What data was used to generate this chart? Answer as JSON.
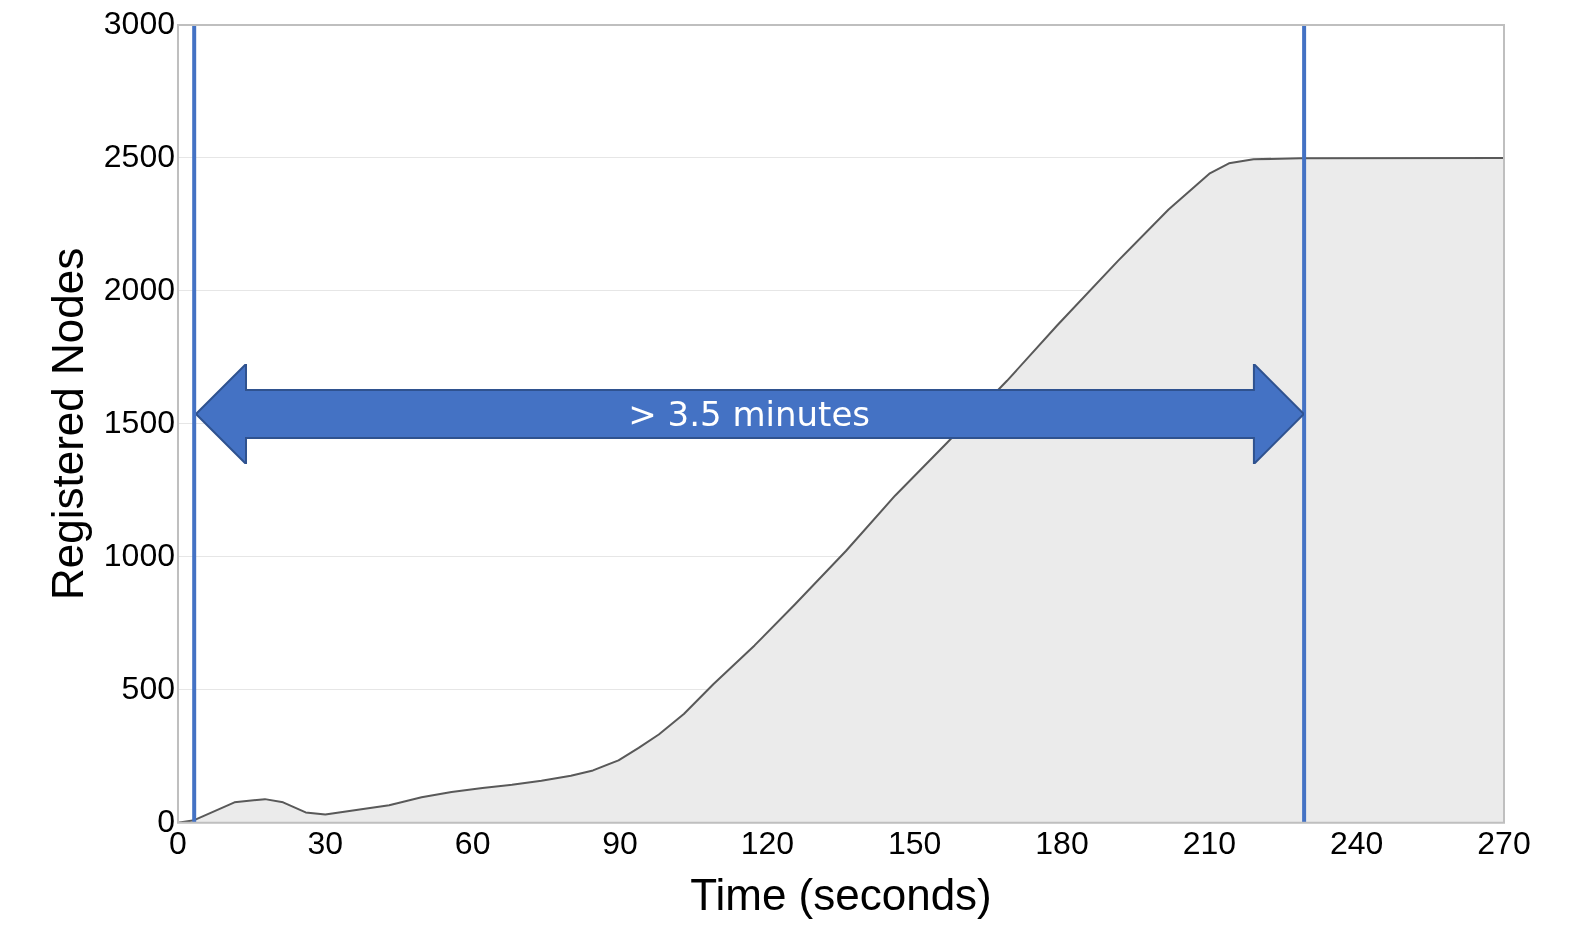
{
  "chart_data": {
    "type": "area",
    "xlabel": "Time (seconds)",
    "ylabel": "Registered Nodes",
    "x": [
      0,
      3.3,
      11.5,
      17.7,
      21.4,
      26,
      30,
      37,
      43,
      49.6,
      55.7,
      62,
      68,
      74,
      80,
      84.5,
      89.7,
      93.8,
      97.9,
      103,
      109,
      117.4,
      125.6,
      136,
      146,
      156.5,
      168.8,
      179,
      191.4,
      201.7,
      210,
      214,
      219,
      228.5,
      270
    ],
    "series": [
      {
        "color": "#595959",
        "values": [
          0,
          10,
          77,
          89,
          77,
          39,
          31,
          50,
          66,
          96,
          116,
          131,
          143,
          158,
          177,
          197,
          235,
          282,
          332,
          409,
          521,
          667,
          821,
          1022,
          1230,
          1427,
          1662,
          1870,
          2113,
          2306,
          2441,
          2480,
          2495,
          2499,
          2500
        ]
      }
    ],
    "xlim": [
      0,
      270
    ],
    "xticks": [
      0,
      30,
      60,
      90,
      120,
      150,
      180,
      210,
      240,
      270
    ],
    "ylim": [
      0,
      3000
    ],
    "yticks": [
      0,
      500,
      1000,
      1500,
      2000,
      2500,
      3000
    ],
    "grid": "y",
    "legend": false,
    "marker": "none",
    "ref_lines": [
      {
        "axis": "x",
        "value": 3.3,
        "color": "#4472c4"
      },
      {
        "axis": "x",
        "value": 229.3,
        "color": "#4472c4"
      }
    ],
    "annotations": [
      "> 3.5 minutes"
    ]
  }
}
